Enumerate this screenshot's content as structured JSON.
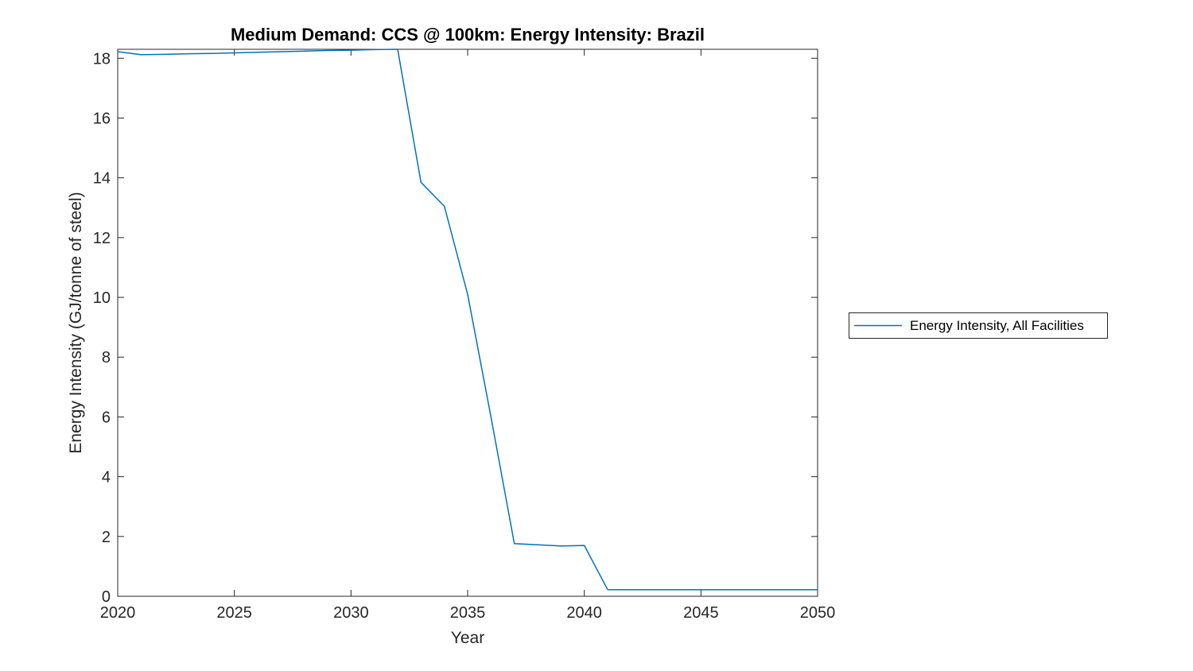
{
  "figure": {
    "background": "#ffffff"
  },
  "chart_data": {
    "type": "line",
    "title": "Medium Demand: CCS @ 100km: Energy Intensity: Brazil",
    "xlabel": "Year",
    "ylabel": "Energy Intensity (GJ/tonne of steel)",
    "xlim": [
      2020,
      2050
    ],
    "ylim": [
      0,
      18.3
    ],
    "x_ticks": [
      2020,
      2025,
      2030,
      2035,
      2040,
      2045,
      2050
    ],
    "y_ticks": [
      0,
      2,
      4,
      6,
      8,
      10,
      12,
      14,
      16,
      18
    ],
    "grid": false,
    "axis_color": "#262626",
    "legend": {
      "position": "right-outside",
      "entries": [
        "Energy Intensity, All Facilities"
      ]
    },
    "series": [
      {
        "name": "Energy Intensity, All Facilities",
        "color": "#0072BD",
        "line_width": 1.5,
        "x": [
          2020,
          2021,
          2022,
          2023,
          2024,
          2025,
          2026,
          2027,
          2028,
          2029,
          2030,
          2031,
          2032,
          2033,
          2034,
          2035,
          2036,
          2037,
          2038,
          2039,
          2040,
          2041,
          2042,
          2043,
          2044,
          2045,
          2046,
          2047,
          2048,
          2049,
          2050
        ],
        "values": [
          18.22,
          18.12,
          18.13,
          18.15,
          18.16,
          18.18,
          18.2,
          18.22,
          18.24,
          18.26,
          18.27,
          18.29,
          18.3,
          13.85,
          13.05,
          10.1,
          6.0,
          1.76,
          1.72,
          1.68,
          1.7,
          0.22,
          0.22,
          0.22,
          0.22,
          0.22,
          0.22,
          0.22,
          0.22,
          0.22,
          0.22
        ]
      }
    ]
  }
}
